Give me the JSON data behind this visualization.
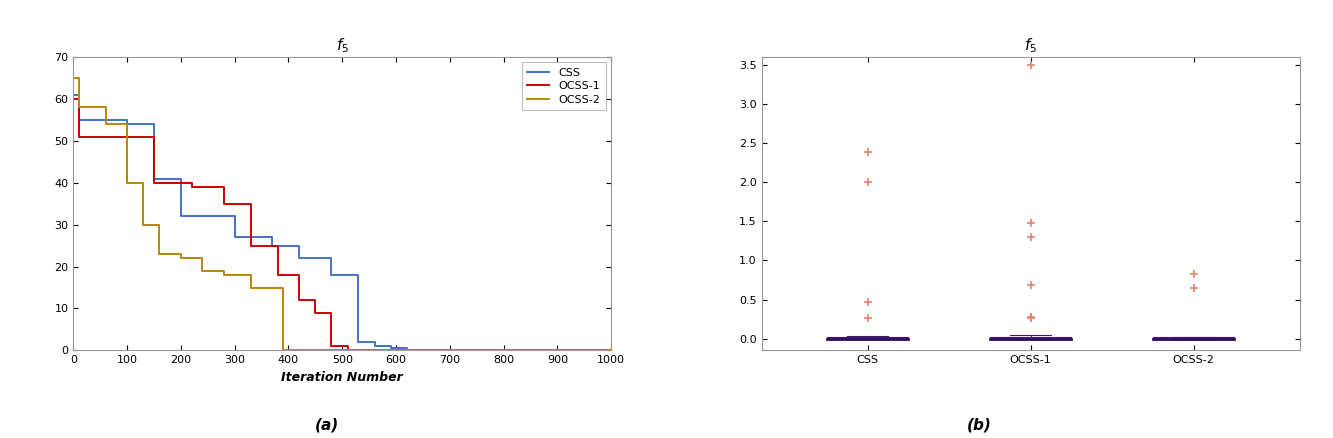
{
  "convergence": {
    "CSS": {
      "color": "#4472C4",
      "x": [
        0,
        10,
        10,
        100,
        100,
        150,
        150,
        200,
        200,
        300,
        300,
        370,
        370,
        420,
        420,
        480,
        480,
        530,
        530,
        560,
        560,
        590,
        590,
        620,
        620,
        650,
        650,
        1000
      ],
      "y": [
        61,
        61,
        55,
        55,
        54,
        54,
        41,
        41,
        32,
        32,
        27,
        27,
        25,
        25,
        22,
        22,
        18,
        18,
        2,
        2,
        1,
        1,
        0.5,
        0.5,
        0,
        0,
        0,
        0
      ]
    },
    "OCSS-1": {
      "color": "#CC0000",
      "x": [
        0,
        10,
        10,
        80,
        80,
        150,
        150,
        220,
        220,
        280,
        280,
        330,
        330,
        380,
        380,
        420,
        420,
        450,
        450,
        480,
        480,
        510,
        510,
        530,
        530,
        560,
        560,
        1000
      ],
      "y": [
        60,
        60,
        51,
        51,
        51,
        51,
        40,
        40,
        39,
        39,
        35,
        35,
        25,
        25,
        18,
        18,
        12,
        12,
        9,
        9,
        1,
        1,
        0,
        0,
        0,
        0,
        0,
        0
      ]
    },
    "OCSS-2": {
      "color": "#B8860B",
      "x": [
        0,
        10,
        10,
        60,
        60,
        100,
        100,
        130,
        130,
        160,
        160,
        200,
        200,
        240,
        240,
        280,
        280,
        330,
        330,
        390,
        390,
        430,
        430,
        470,
        470,
        500,
        500,
        1000
      ],
      "y": [
        65,
        65,
        58,
        58,
        54,
        54,
        40,
        40,
        30,
        30,
        23,
        23,
        22,
        22,
        19,
        19,
        18,
        18,
        15,
        15,
        0,
        0,
        0,
        0,
        0,
        0,
        0,
        0
      ]
    }
  },
  "convergence_xlim": [
    0,
    1000
  ],
  "convergence_ylim": [
    0,
    70
  ],
  "convergence_xticks": [
    0,
    100,
    200,
    300,
    400,
    500,
    600,
    700,
    800,
    900,
    1000
  ],
  "convergence_yticks": [
    0,
    10,
    20,
    30,
    40,
    50,
    60,
    70
  ],
  "convergence_xlabel": "Iteration Number",
  "legend_entries": [
    "CSS",
    "OCSS-1",
    "OCSS-2"
  ],
  "boxplot": {
    "categories": [
      "CSS",
      "OCSS-1",
      "OCSS-2"
    ],
    "CSS": {
      "median": 0.0,
      "q1": -0.005,
      "q3": 0.015,
      "whisker_low": -0.01,
      "whisker_high": 0.03,
      "outliers": [
        0.27,
        0.47,
        2.0,
        2.38
      ]
    },
    "OCSS-1": {
      "median": 0.0,
      "q1": -0.005,
      "q3": 0.02,
      "whisker_low": -0.01,
      "whisker_high": 0.05,
      "outliers": [
        0.27,
        0.28,
        0.68,
        1.3,
        1.48,
        3.5
      ]
    },
    "OCSS-2": {
      "median": 0.0,
      "q1": -0.005,
      "q3": 0.015,
      "whisker_low": -0.01,
      "whisker_high": 0.025,
      "outliers": [
        0.65,
        0.83
      ]
    }
  },
  "boxplot_ylim": [
    -0.15,
    3.6
  ],
  "boxplot_yticks": [
    0.0,
    0.5,
    1.0,
    1.5,
    2.0,
    2.5,
    3.0,
    3.5
  ],
  "box_face_color": "#7B68C8",
  "box_edge_color": "#3D1A6E",
  "median_color": "#2D0A5E",
  "whisker_color": "#3D1A6E",
  "outlier_color": "#E8826A",
  "cap_color": "#3D1A6E",
  "label_a": "(a)",
  "label_b": "(b)",
  "background_color": "#FFFFFF"
}
